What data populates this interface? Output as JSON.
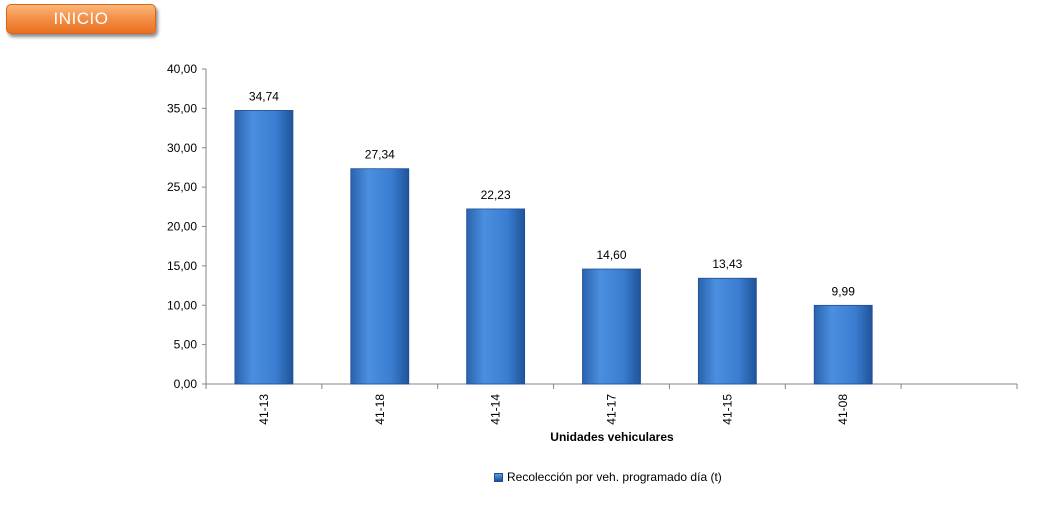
{
  "button": {
    "label": "INICIO"
  },
  "chart_data": {
    "type": "bar",
    "categories": [
      "41-13",
      "41-18",
      "41-14",
      "41-17",
      "41-15",
      "41-08"
    ],
    "series": [
      {
        "name": "Recolección por veh. programado día (t)",
        "values": [
          34.74,
          27.34,
          22.23,
          14.6,
          13.43,
          9.99
        ],
        "labels": [
          "34,74",
          "27,34",
          "22,23",
          "14,60",
          "13,43",
          "9,99"
        ]
      }
    ],
    "xlabel": "Unidades vehiculares",
    "ylabel": "",
    "ylim": [
      0,
      40
    ],
    "yticks": [
      0,
      5,
      10,
      15,
      20,
      25,
      30,
      35,
      40
    ],
    "ytick_labels": [
      "0,00",
      "5,00",
      "10,00",
      "15,00",
      "20,00",
      "25,00",
      "30,00",
      "35,00",
      "40,00"
    ],
    "legend_position": "bottom",
    "grid": false,
    "bar_color": "#3a7dd1"
  }
}
